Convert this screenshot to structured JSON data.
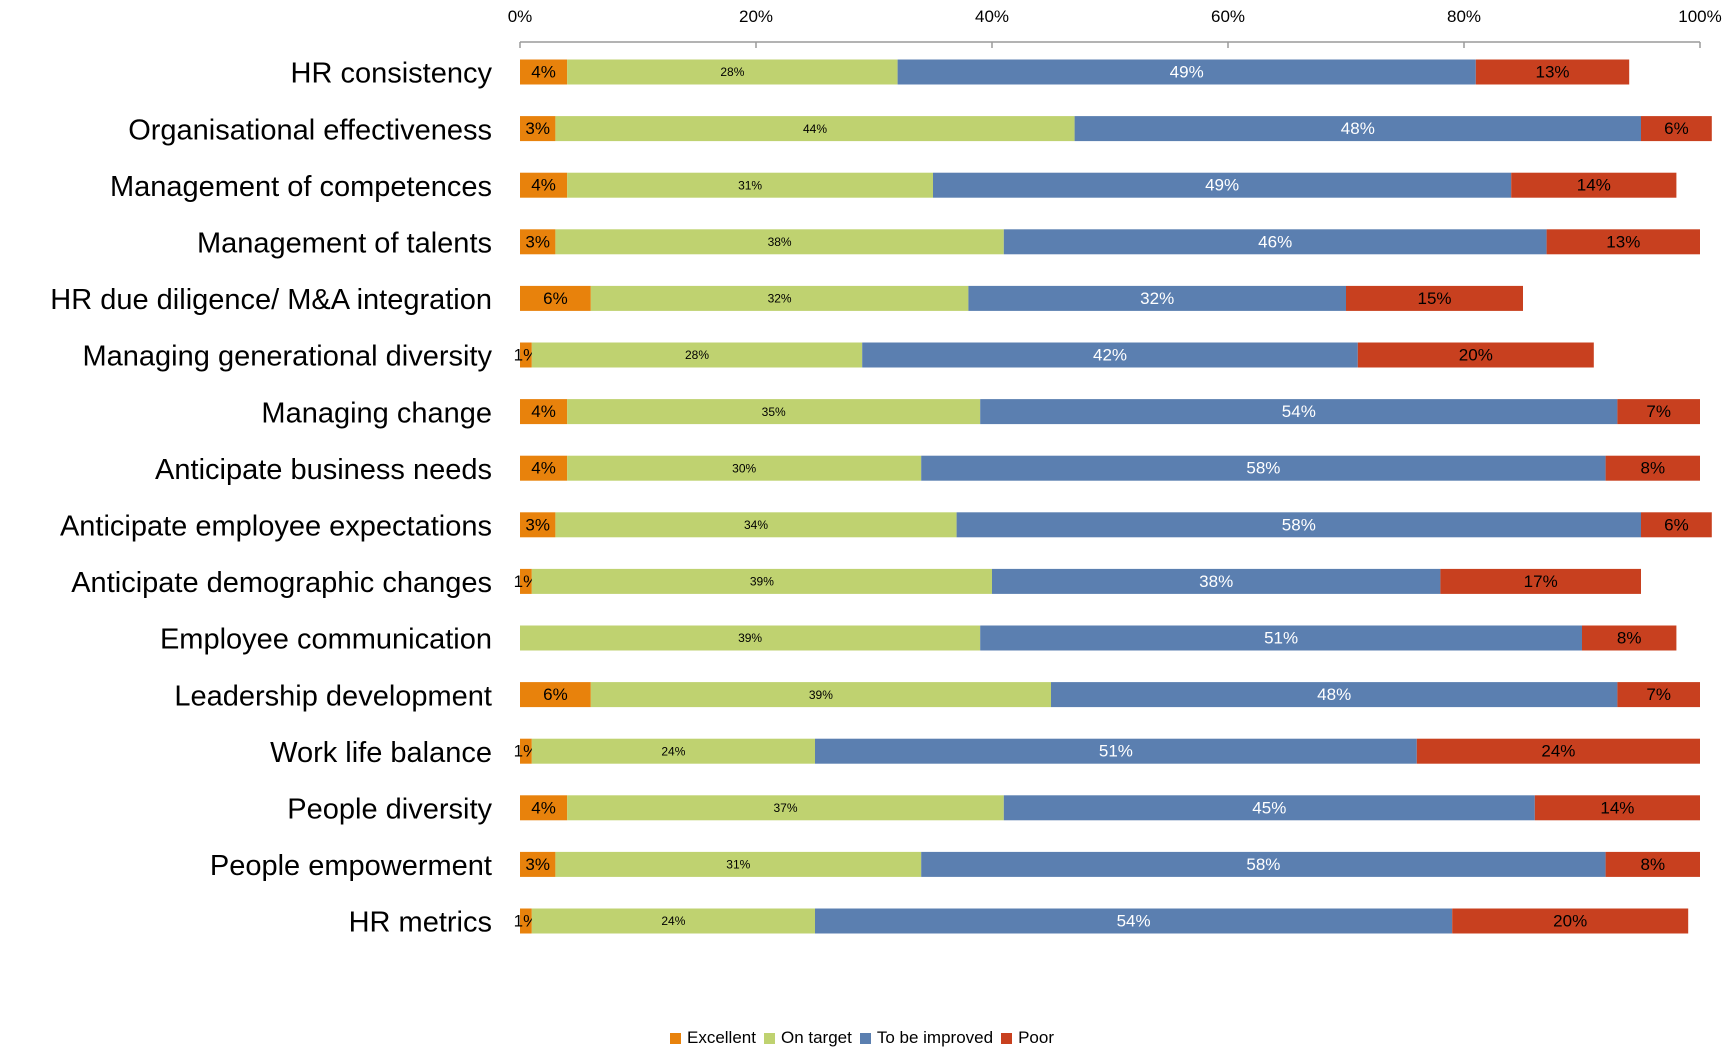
{
  "chart_data": {
    "type": "bar",
    "orientation": "horizontal",
    "stacked": "percent",
    "categories": [
      "HR consistency",
      "Organisational effectiveness",
      "Management of competences",
      "Management of talents",
      "HR due diligence/ M&A integration",
      "Managing generational diversity",
      "Managing change",
      "Anticipate business needs",
      "Anticipate employee expectations",
      "Anticipate demographic changes",
      "Employee communication",
      "Leadership development",
      "Work life balance",
      "People diversity",
      "People empowerment",
      "HR metrics"
    ],
    "series": [
      {
        "name": "Excellent",
        "color": "#E8820C",
        "label_color": "#000000",
        "values": [
          4,
          3,
          4,
          3,
          6,
          1,
          4,
          4,
          3,
          1,
          0,
          6,
          1,
          4,
          3,
          1
        ]
      },
      {
        "name": "On target",
        "color": "#BFD270",
        "label_color": "#000000",
        "values": [
          28,
          44,
          31,
          38,
          32,
          28,
          35,
          30,
          34,
          39,
          39,
          39,
          24,
          37,
          31,
          24
        ]
      },
      {
        "name": "To be improved",
        "color": "#5B7FB0",
        "label_color": "#ffffff",
        "values": [
          49,
          48,
          49,
          46,
          32,
          42,
          54,
          58,
          58,
          38,
          51,
          48,
          51,
          45,
          58,
          54
        ]
      },
      {
        "name": "Poor",
        "color": "#C8401F",
        "label_color": "#000000",
        "values": [
          13,
          6,
          14,
          13,
          15,
          20,
          7,
          8,
          6,
          17,
          8,
          7,
          24,
          14,
          8,
          20
        ]
      }
    ],
    "x_ticks": [
      "0%",
      "20%",
      "40%",
      "60%",
      "80%",
      "100%"
    ],
    "xlim": [
      0,
      100
    ],
    "x_axis_position": "top",
    "gridlines": false,
    "legend_position": "bottom"
  }
}
